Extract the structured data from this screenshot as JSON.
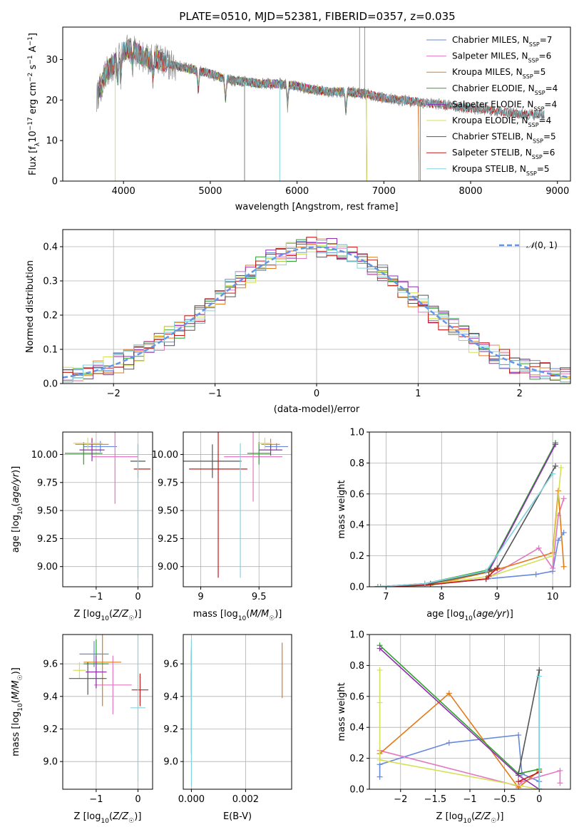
{
  "figure": {
    "title": "PLATE=0510, MJD=52381, FIBERID=0357, z=0.035"
  },
  "colors": [
    "#6688dd",
    "#e377c2",
    "#e07b1a",
    "#2ca02c",
    "#9030b0",
    "#d4e157",
    "#555555",
    "#c41a1a",
    "#80d4e0"
  ],
  "chart_data": [
    {
      "type": "line",
      "id": "spectrum",
      "title": "PLATE=0510, MJD=52381, FIBERID=0357, z=0.035",
      "xlabel": "wavelength [Angstrom, rest frame]",
      "ylabel": "Flux [f_λ 10^-17 erg cm^-2 s^-1 A^-1]",
      "xlim": [
        3300,
        9150
      ],
      "ylim": [
        0,
        38
      ],
      "xticks": [
        4000,
        5000,
        6000,
        7000,
        8000,
        9000
      ],
      "yticks": [
        0,
        10,
        20,
        30
      ],
      "grid": false,
      "legend": "top-right",
      "data_continuum": {
        "x": [
          3700,
          3800,
          3900,
          4000,
          4100,
          4200,
          4300,
          4400,
          4500,
          4600,
          4700,
          4800,
          4900,
          5000,
          5200,
          5400,
          5600,
          5800,
          6000,
          6200,
          6400,
          6600,
          6800,
          7000,
          7200,
          7400,
          7600,
          7800,
          8000,
          8200,
          8400,
          8600,
          8850
        ],
        "y": [
          21,
          27,
          29,
          32,
          33,
          31,
          30,
          30,
          29,
          28.5,
          28,
          27.5,
          27,
          26.5,
          25,
          24.5,
          24,
          24,
          23.5,
          22.5,
          22,
          22,
          21.5,
          20.5,
          20,
          19.5,
          19,
          18.5,
          18,
          17.5,
          17,
          16.5,
          16.5
        ]
      },
      "series": [
        {
          "name": "Chabrier MILES, N_SSP=7",
          "legend_main": "Chabrier MILES, N",
          "n_ssp": "7",
          "end_wave": 7400
        },
        {
          "name": "Salpeter MILES, N_SSP=6",
          "legend_main": "Salpeter MILES, N",
          "n_ssp": "6",
          "end_wave": 7400
        },
        {
          "name": "Kroupa MILES, N_SSP=5",
          "legend_main": "Kroupa MILES, N",
          "n_ssp": "5",
          "end_wave": 7400
        },
        {
          "name": "Chabrier ELODIE, N_SSP=4",
          "legend_main": "Chabrier ELODIE, N",
          "n_ssp": "4",
          "end_wave": 6800
        },
        {
          "name": "Salpeter ELODIE, N_SSP=4",
          "legend_main": "Salpeter ELODIE, N",
          "n_ssp": "4",
          "end_wave": 6800
        },
        {
          "name": "Kroupa ELODIE, N_SSP=4",
          "legend_main": "Kroupa ELODIE, N",
          "n_ssp": "4",
          "end_wave": 6800
        },
        {
          "name": "Chabrier STELIB, N_SSP=5",
          "legend_main": "Chabrier STELIB, N",
          "n_ssp": "5",
          "end_wave": 8850
        },
        {
          "name": "Salpeter STELIB, N_SSP=6",
          "legend_main": "Salpeter STELIB, N",
          "n_ssp": "6",
          "end_wave": 8850
        },
        {
          "name": "Kroupa STELIB, N_SSP=5",
          "legend_main": "Kroupa STELIB, N",
          "n_ssp": "5",
          "end_wave": 8850
        }
      ]
    },
    {
      "type": "line",
      "id": "residuals",
      "xlabel": "(data-model)/error",
      "ylabel": "Normed distribution",
      "xlim": [
        -2.5,
        2.5
      ],
      "ylim": [
        0,
        0.45
      ],
      "xticks": [
        -2,
        -1,
        0,
        1,
        2
      ],
      "yticks": [
        0.0,
        0.1,
        0.2,
        0.3,
        0.4
      ],
      "grid": true,
      "legend": "top-right",
      "reference": {
        "name": "N(0,1)",
        "label_script": "𝒩",
        "label_rest": "(0, 1)",
        "mean": 0,
        "sigma": 1
      },
      "histogram": {
        "bin_start": -2.5,
        "bin_width": 0.1,
        "bins": 50
      }
    },
    {
      "type": "scatter",
      "id": "age-vs-Z",
      "xlabel": "Z [log10(Z/Z☉)]",
      "ylabel": "age  [log10(age/yr)]",
      "xlim": [
        -1.8,
        0.35
      ],
      "ylim": [
        8.82,
        10.2
      ],
      "xticks": [
        -1,
        0
      ],
      "yticks": [
        9.0,
        9.25,
        9.5,
        9.75,
        10.0
      ],
      "grid": true,
      "points": [
        {
          "x": -0.9,
          "y": 10.07,
          "xerr": 0.4,
          "yerr": 0.05
        },
        {
          "x": -0.55,
          "y": 9.98,
          "xerr": 0.55,
          "yerr": 0.42
        },
        {
          "x": -1.1,
          "y": 10.09,
          "xerr": 0.4,
          "yerr": 0.06
        },
        {
          "x": -1.3,
          "y": 10.01,
          "xerr": 0.45,
          "yerr": 0.1
        },
        {
          "x": -1.1,
          "y": 10.04,
          "xerr": 0.3,
          "yerr": 0.1
        },
        {
          "x": -1.2,
          "y": 10.1,
          "xerr": 0.35,
          "yerr": 0.05
        },
        {
          "x": 0.0,
          "y": 9.94,
          "xerr": 0.18,
          "yerr": 0.15
        },
        {
          "x": 0.1,
          "y": 9.87,
          "xerr": 0.2,
          "yerr": 0.0
        },
        {
          "x": 0.0,
          "y": 9.5,
          "xerr": 0.0,
          "yerr": 0.6
        }
      ]
    },
    {
      "type": "scatter",
      "id": "age-vs-mass",
      "xlabel": "mass [log10(M/M☉)]",
      "ylabel": "",
      "xlim": [
        8.85,
        9.78
      ],
      "ylim": [
        8.82,
        10.2
      ],
      "xticks": [
        9.0,
        9.5
      ],
      "yticks": [
        9.0,
        9.25,
        9.5,
        9.75,
        10.0
      ],
      "grid": true,
      "points": [
        {
          "x": 9.65,
          "y": 10.07,
          "xerr": 0.1,
          "yerr": 0.03
        },
        {
          "x": 9.45,
          "y": 9.98,
          "xerr": 0.25,
          "yerr": 0.4
        },
        {
          "x": 9.6,
          "y": 10.09,
          "xerr": 0.08,
          "yerr": 0.05
        },
        {
          "x": 9.5,
          "y": 10.01,
          "xerr": 0.1,
          "yerr": 0.1
        },
        {
          "x": 9.6,
          "y": 10.04,
          "xerr": 0.1,
          "yerr": 0.05
        },
        {
          "x": 9.55,
          "y": 10.1,
          "xerr": 0.06,
          "yerr": 0.05
        },
        {
          "x": 9.1,
          "y": 9.94,
          "xerr": 0.25,
          "yerr": 0.15
        },
        {
          "x": 9.15,
          "y": 9.87,
          "xerr": 0.25,
          "yerr": 0.97
        },
        {
          "x": 9.34,
          "y": 9.5,
          "xerr": 0.0,
          "yerr": 0.6
        }
      ]
    },
    {
      "type": "line",
      "id": "weight-vs-age",
      "xlabel": "age  [log10(age/yr)]",
      "ylabel": "mass weight",
      "xlim": [
        6.7,
        10.32
      ],
      "ylim": [
        0,
        1
      ],
      "xticks": [
        7,
        8,
        9,
        10
      ],
      "yticks": [
        0.0,
        0.2,
        0.4,
        0.6,
        0.8,
        1.0
      ],
      "grid": true,
      "series": [
        {
          "x": [
            6.85,
            7.7,
            8.8,
            9.7,
            10.0,
            10.1,
            10.2
          ],
          "y": [
            0.0,
            0.01,
            0.05,
            0.08,
            0.1,
            0.3,
            0.35
          ]
        },
        {
          "x": [
            6.85,
            7.7,
            8.8,
            9.75,
            10.0,
            10.1,
            10.2
          ],
          "y": [
            0.0,
            0.01,
            0.05,
            0.25,
            0.12,
            0.46,
            0.57
          ]
        },
        {
          "x": [
            6.9,
            7.8,
            8.9,
            10.0,
            10.1,
            10.2
          ],
          "y": [
            0.0,
            0.01,
            0.1,
            0.22,
            0.62,
            0.13
          ]
        },
        {
          "x": [
            6.85,
            7.7,
            8.85,
            10.05
          ],
          "y": [
            0.0,
            0.02,
            0.11,
            0.93
          ]
        },
        {
          "x": [
            6.85,
            7.7,
            8.85,
            10.05
          ],
          "y": [
            0.0,
            0.02,
            0.1,
            0.92
          ]
        },
        {
          "x": [
            6.85,
            7.7,
            8.9,
            10.0,
            10.15
          ],
          "y": [
            0.0,
            0.01,
            0.07,
            0.2,
            0.77
          ]
        },
        {
          "x": [
            6.85,
            7.8,
            8.85,
            9.0,
            10.05
          ],
          "y": [
            0.0,
            0.02,
            0.1,
            0.12,
            0.78
          ]
        },
        {
          "x": [
            6.85,
            7.7,
            8.8,
            8.85,
            9.0
          ],
          "y": [
            0.0,
            0.01,
            0.05,
            0.07,
            0.12
          ]
        },
        {
          "x": [
            6.85,
            7.7,
            8.8,
            10.0
          ],
          "y": [
            0.0,
            0.02,
            0.1,
            0.73
          ]
        }
      ]
    },
    {
      "type": "scatter",
      "id": "mass-vs-Z",
      "xlabel": "Z [log10(Z/Z☉)]",
      "ylabel": "mass [log10(M/M☉)]",
      "xlim": [
        -1.8,
        0.35
      ],
      "ylim": [
        8.83,
        9.78
      ],
      "xticks": [
        -1,
        0
      ],
      "yticks": [
        9.0,
        9.2,
        9.4,
        9.6
      ],
      "grid": true,
      "points": [
        {
          "x": -1.05,
          "y": 9.66,
          "xerr": 0.35,
          "yerr": 0.08
        },
        {
          "x": -0.6,
          "y": 9.47,
          "xerr": 0.45,
          "yerr": 0.18
        },
        {
          "x": -0.85,
          "y": 9.61,
          "xerr": 0.45,
          "yerr": 0.27
        },
        {
          "x": -1.0,
          "y": 9.6,
          "xerr": 0.3,
          "yerr": 0.15
        },
        {
          "x": -1.0,
          "y": 9.55,
          "xerr": 0.25,
          "yerr": 0.1
        },
        {
          "x": -1.4,
          "y": 9.56,
          "xerr": 0.15,
          "yerr": 0.05
        },
        {
          "x": -1.2,
          "y": 9.51,
          "xerr": 0.45,
          "yerr": 0.1
        },
        {
          "x": 0.05,
          "y": 9.44,
          "xerr": 0.2,
          "yerr": 0.1
        },
        {
          "x": 0.0,
          "y": 9.33,
          "xerr": 0.18,
          "yerr": 0.45
        }
      ]
    },
    {
      "type": "scatter",
      "id": "mass-vs-EBV",
      "xlabel": "E(B-V)",
      "ylabel": "",
      "xlim": [
        -0.0003,
        0.0037
      ],
      "ylim": [
        8.83,
        9.78
      ],
      "xticks": [
        0.0,
        0.002
      ],
      "xticklabels": [
        "0.000",
        "0.002"
      ],
      "yticks": [
        9.0,
        9.2,
        9.4,
        9.6
      ],
      "grid": true,
      "points": [
        {
          "x": 0.0,
          "y": 9.65,
          "yerr": 0.05
        },
        {
          "x": 0.0,
          "y": 9.47,
          "yerr": 0.06
        },
        {
          "x": 0.00335,
          "y": 9.56,
          "yerr": 0.17
        },
        {
          "x": 0.0,
          "y": 9.6,
          "yerr": 0.05
        },
        {
          "x": 0.0,
          "y": 9.62,
          "yerr": 0.06
        },
        {
          "x": 0.0,
          "y": 9.55,
          "yerr": 0.04
        },
        {
          "x": 0.0,
          "y": 9.3,
          "yerr": 0.25
        },
        {
          "x": 0.0,
          "y": 9.5,
          "yerr": 0.06
        },
        {
          "x": 0.0,
          "y": 9.3,
          "yerr": 0.45
        }
      ]
    },
    {
      "type": "line",
      "id": "weight-vs-Z",
      "xlabel": "Z [log10(Z/Z☉)]",
      "ylabel": "mass weight",
      "xlim": [
        -2.45,
        0.45
      ],
      "ylim": [
        0,
        1
      ],
      "xticks": [
        -2.0,
        -1.5,
        -1.0,
        -0.5,
        0.0
      ],
      "yticks": [
        0.0,
        0.2,
        0.4,
        0.6,
        0.8,
        1.0
      ],
      "grid": true,
      "series": [
        {
          "x": [
            -2.3,
            -2.3,
            -1.3,
            -0.3,
            -0.25,
            0.0,
            0.0
          ],
          "y": [
            0.08,
            0.16,
            0.3,
            0.35,
            0.1,
            0.05,
            0.0
          ]
        },
        {
          "x": [
            -2.3,
            -0.3,
            -0.25,
            0.3,
            0.3
          ],
          "y": [
            0.25,
            0.02,
            0.05,
            0.12,
            0.04
          ]
        },
        {
          "x": [
            -2.3,
            -1.3,
            -0.3,
            0.0
          ],
          "y": [
            0.23,
            0.62,
            0.01,
            0.12
          ]
        },
        {
          "x": [
            -2.3,
            -0.3,
            0.0
          ],
          "y": [
            0.93,
            0.1,
            0.13
          ]
        },
        {
          "x": [
            -2.3,
            -0.3,
            0.0
          ],
          "y": [
            0.91,
            0.09,
            0.0
          ]
        },
        {
          "x": [
            -2.3,
            -2.3,
            -2.3,
            0.0
          ],
          "y": [
            0.77,
            0.56,
            0.19,
            0.0
          ]
        },
        {
          "x": [
            -0.3,
            0.0,
            0.0
          ],
          "y": [
            0.1,
            0.77,
            0.0
          ]
        },
        {
          "x": [
            -0.3,
            0.0,
            0.0
          ],
          "y": [
            0.05,
            0.11,
            0.0
          ]
        },
        {
          "x": [
            0.0,
            0.0
          ],
          "y": [
            0.73,
            0.0
          ]
        }
      ]
    }
  ]
}
